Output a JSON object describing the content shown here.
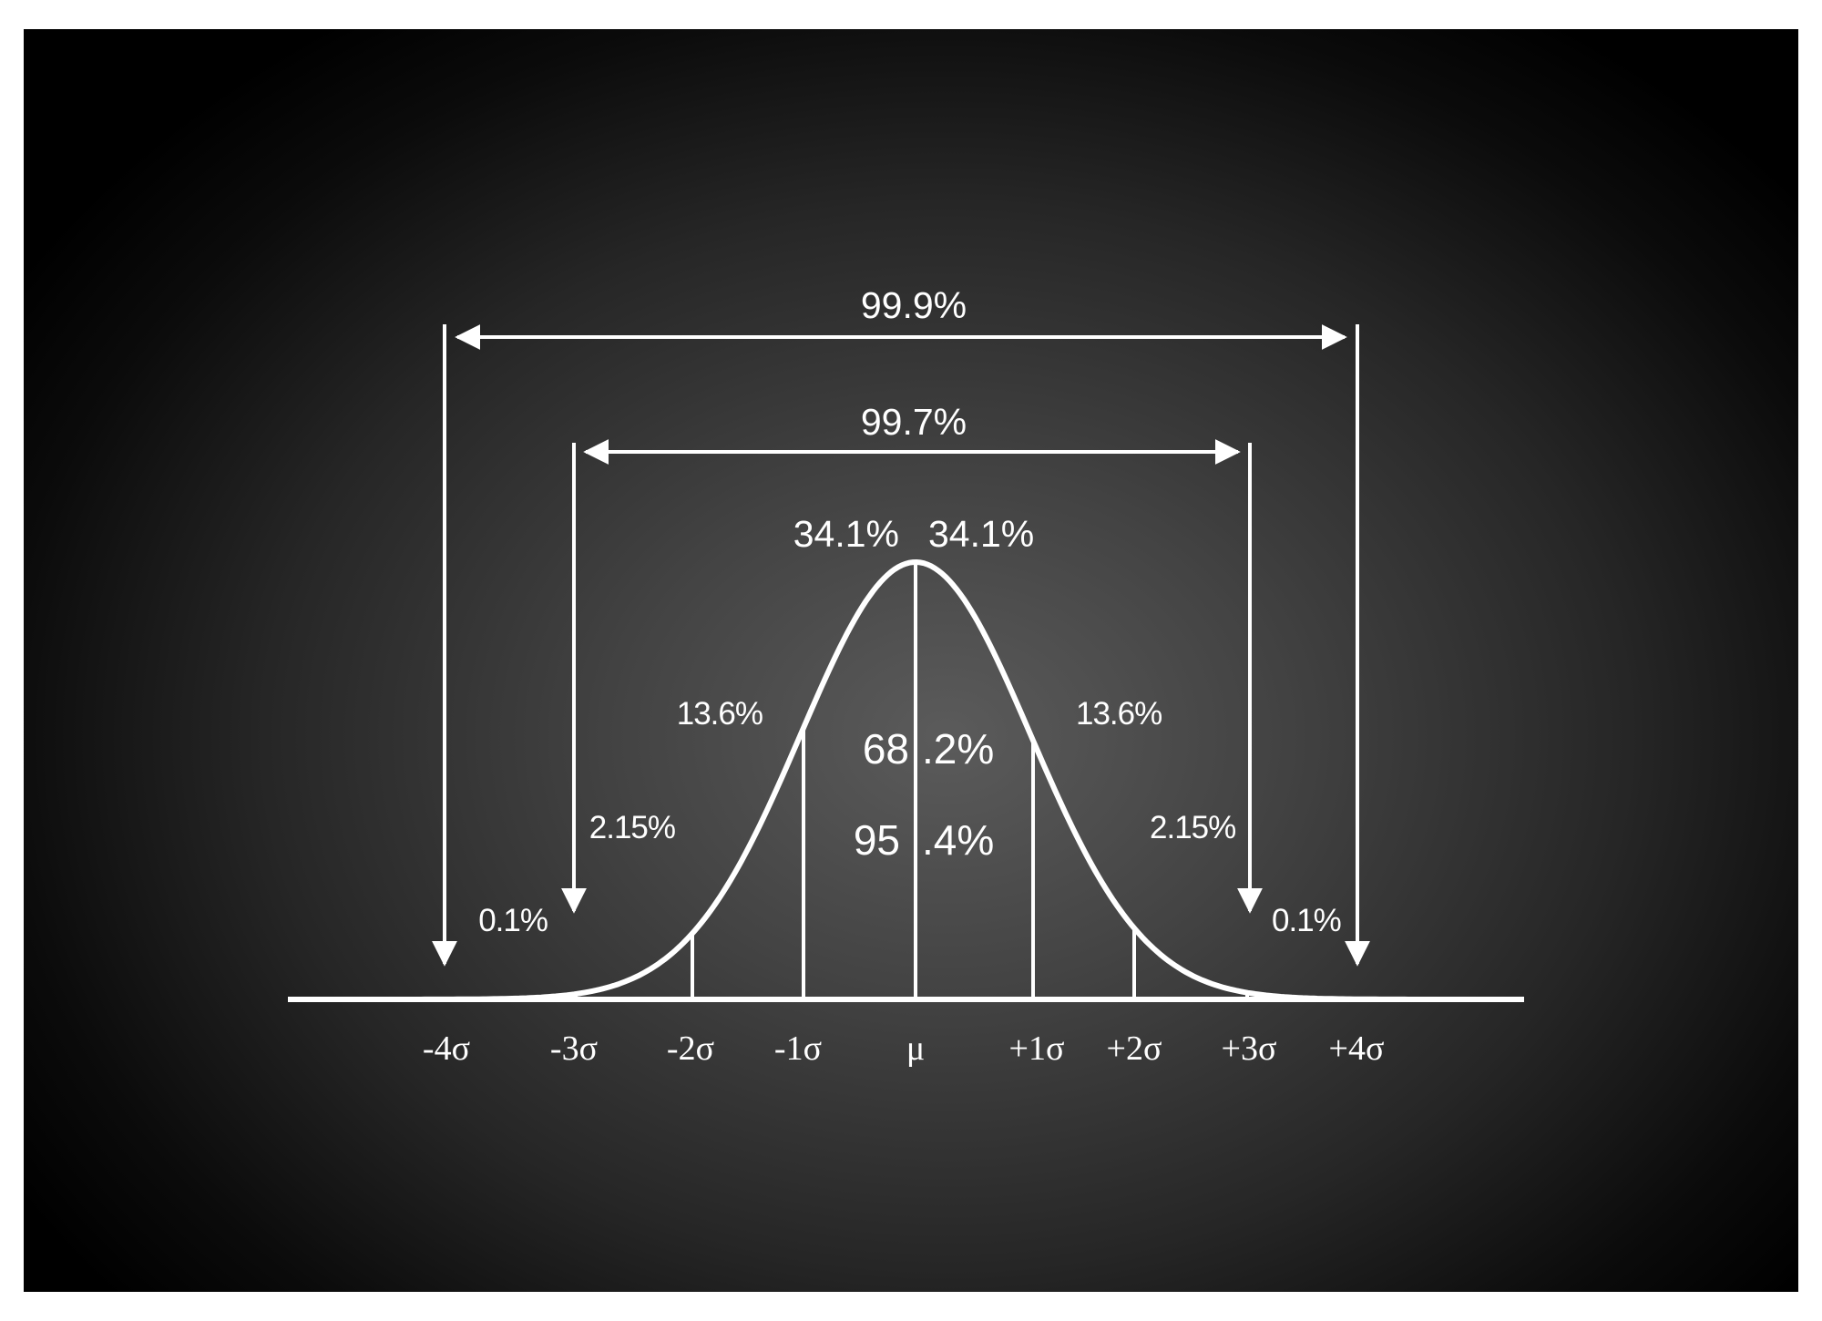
{
  "diagram": {
    "type": "normal-distribution",
    "axis_labels": [
      "-4σ",
      "-3σ",
      "-2σ",
      "-1σ",
      "μ",
      "+1σ",
      "+2σ",
      "+3σ",
      "+4σ"
    ],
    "spans": {
      "outer": {
        "label": "99.9%",
        "from": "-4σ",
        "to": "+4σ"
      },
      "inner": {
        "label": "99.7%",
        "from": "-3σ",
        "to": "+3σ"
      }
    },
    "regions": {
      "left_34": "34.1%",
      "right_34": "34.1%",
      "left_13": "13.6%",
      "right_13": "13.6%",
      "left_2": "2.15%",
      "right_2": "2.15%",
      "left_tail": "0.1%",
      "right_tail": "0.1%"
    },
    "center": {
      "one_sigma_left": "68",
      "one_sigma_right": ".2%",
      "two_sigma_left": "95",
      "two_sigma_right": ".4%"
    },
    "colors": {
      "chalk": "#ffffff",
      "board_center": "#5b5b5b",
      "board_edge": "#000000"
    }
  }
}
